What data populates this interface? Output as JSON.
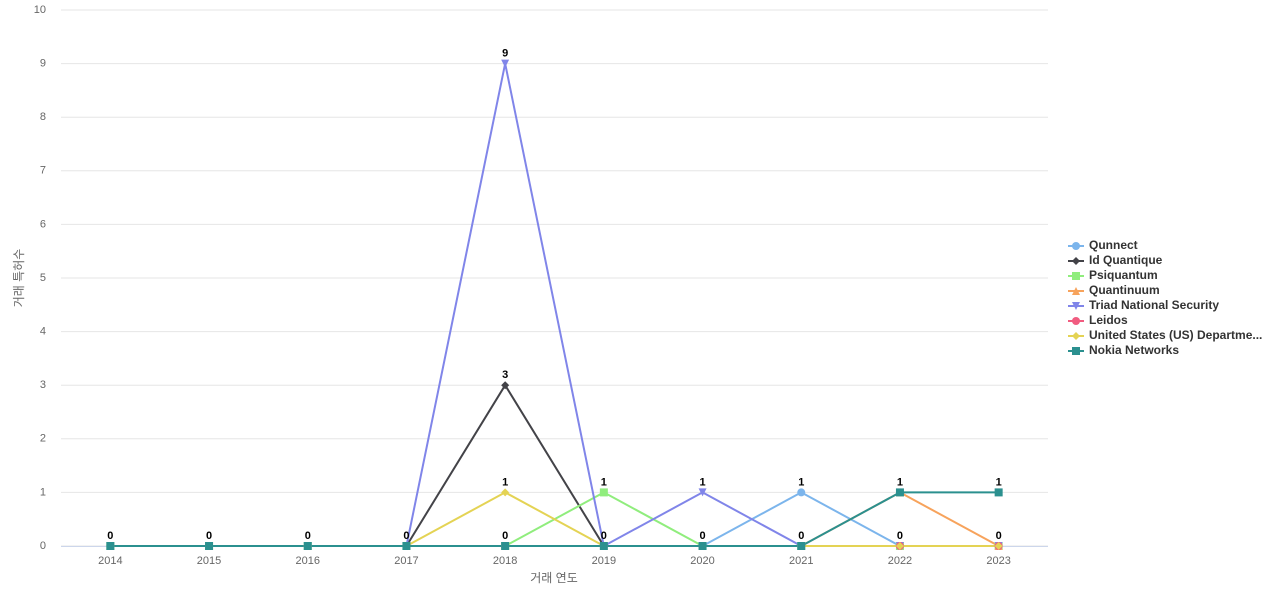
{
  "chart_data": {
    "type": "line",
    "x_label": "거래 연도",
    "y_label": "거래 특허수",
    "categories": [
      "2014",
      "2015",
      "2016",
      "2017",
      "2018",
      "2019",
      "2020",
      "2021",
      "2022",
      "2023"
    ],
    "ylim": [
      0,
      10
    ],
    "yticks": [
      0,
      1,
      2,
      3,
      4,
      5,
      6,
      7,
      8,
      9,
      10
    ],
    "grid": true,
    "legend": "right",
    "series": [
      {
        "name": "Qunnect",
        "color": "#7cb5ec",
        "marker": "circle",
        "values": [
          0,
          0,
          0,
          0,
          0,
          0,
          0,
          1,
          0,
          0
        ]
      },
      {
        "name": "Id Quantique",
        "color": "#434348",
        "marker": "diamond",
        "values": [
          0,
          0,
          0,
          0,
          3,
          0,
          0,
          0,
          0,
          0
        ]
      },
      {
        "name": "Psiquantum",
        "color": "#90ed7d",
        "marker": "square",
        "values": [
          0,
          0,
          0,
          0,
          0,
          1,
          0,
          0,
          0,
          0
        ]
      },
      {
        "name": "Quantinuum",
        "color": "#f7a35c",
        "marker": "triangle",
        "values": [
          0,
          0,
          0,
          0,
          0,
          0,
          0,
          0,
          1,
          0
        ]
      },
      {
        "name": "Triad National Security",
        "color": "#8085e9",
        "marker": "triangle-down",
        "values": [
          0,
          0,
          0,
          0,
          9,
          0,
          1,
          0,
          0,
          0
        ]
      },
      {
        "name": "Leidos",
        "color": "#f15c80",
        "marker": "circle",
        "values": [
          0,
          0,
          0,
          0,
          0,
          0,
          0,
          0,
          0,
          0
        ]
      },
      {
        "name": "United States (US) Departme...",
        "color": "#e4d354",
        "marker": "diamond",
        "values": [
          0,
          0,
          0,
          0,
          1,
          0,
          0,
          0,
          0,
          0
        ]
      },
      {
        "name": "Nokia Networks",
        "color": "#2b908f",
        "marker": "square",
        "values": [
          0,
          0,
          0,
          0,
          0,
          0,
          0,
          0,
          1,
          1
        ]
      }
    ]
  }
}
